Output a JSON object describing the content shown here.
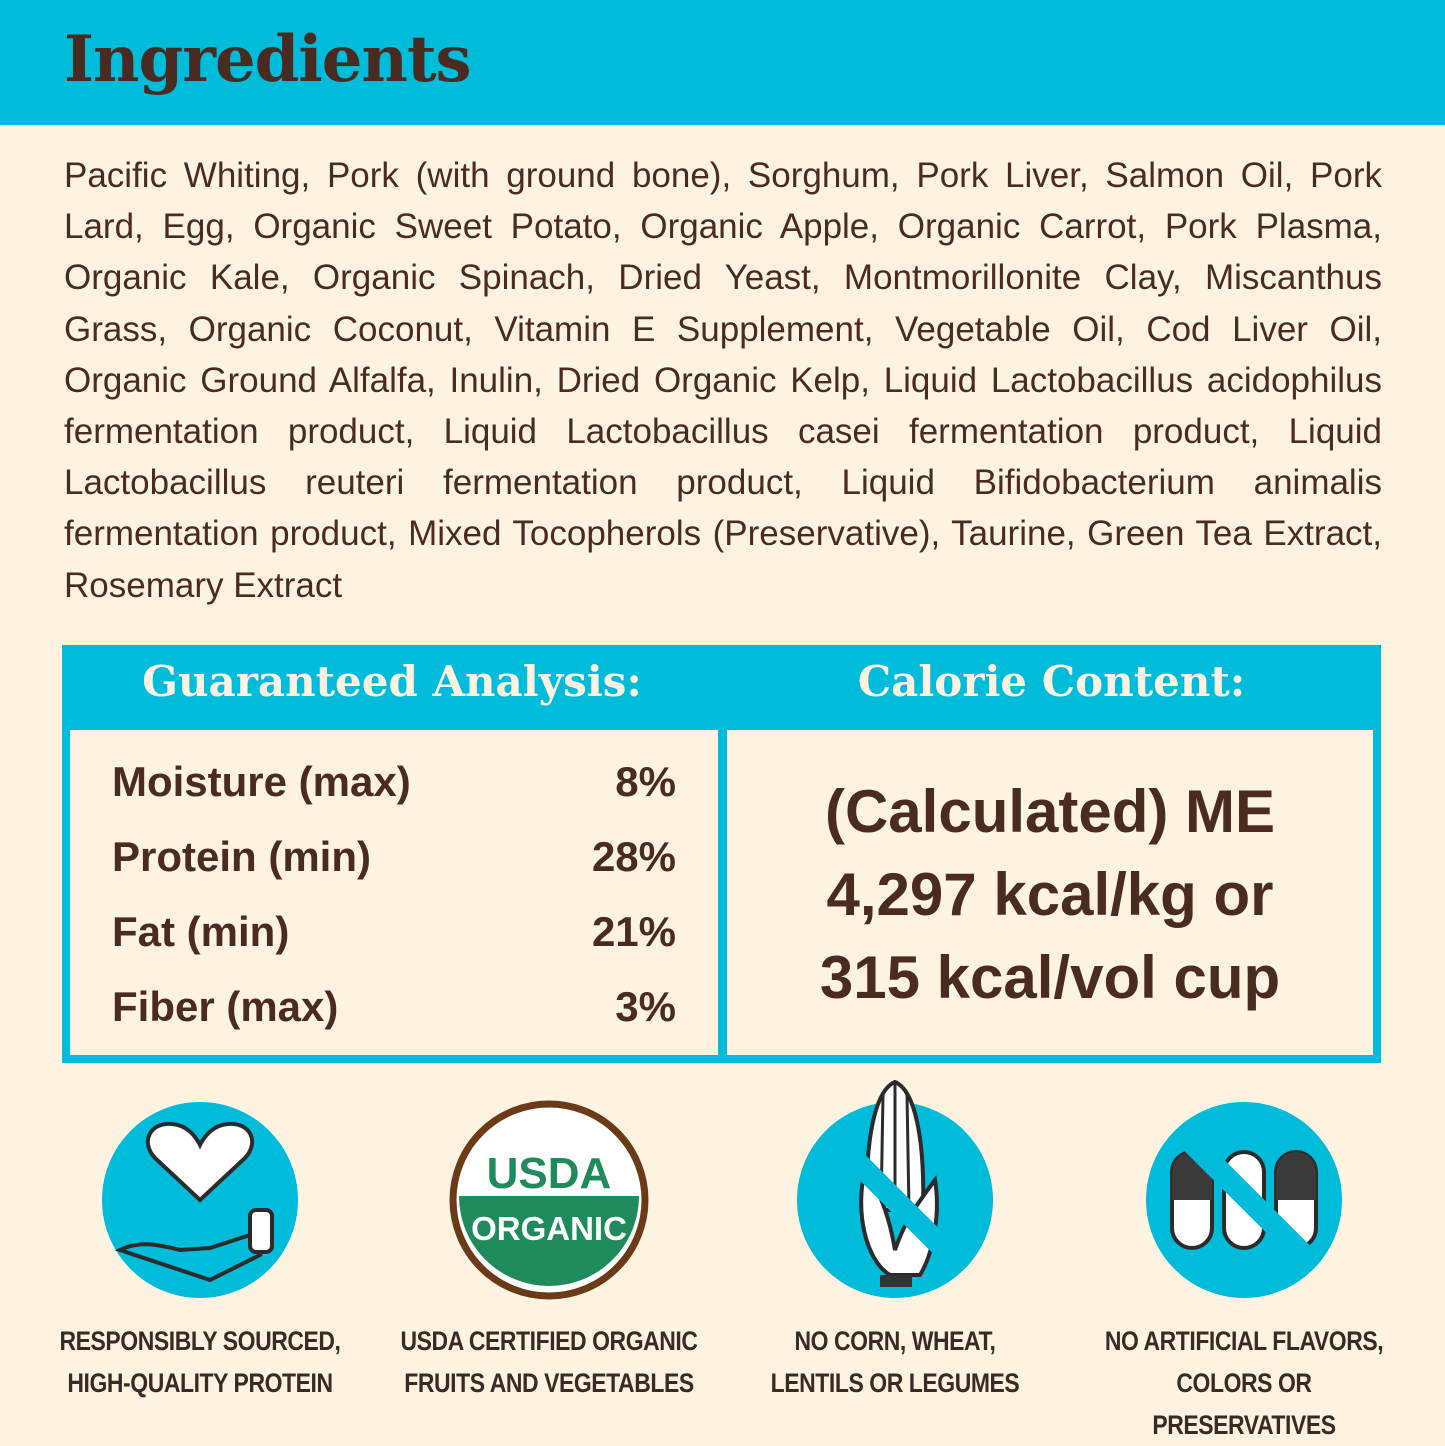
{
  "header": {
    "title": "Ingredients"
  },
  "ingredients": "Pacific Whiting, Pork (with ground bone), Sorghum, Pork Liver, Salmon Oil, Pork Lard, Egg, Organic Sweet Potato, Organic Apple, Organic Carrot, Pork Plasma, Organic Kale, Organic Spinach, Dried Yeast, Montmorillonite Clay, Miscanthus Grass, Organic Coconut, Vitamin E Supplement, Vegetable Oil, Cod Liver Oil, Organic Ground Alfalfa, Inulin, Dried Organic Kelp, Liquid Lactobacillus acidophilus fermentation product, Liquid Lactobacillus casei fermentation product, Liquid Lactobacillus reuteri fermentation product, Liquid Bifidobacterium animalis fermentation product, Mixed Tocopherols (Preservative), Taurine, Green Tea Extract, Rosemary Extract",
  "analysis": {
    "title": "Guaranteed Analysis:",
    "rows": [
      {
        "label": "Moisture (max)",
        "value": "8%"
      },
      {
        "label": "Protein (min)",
        "value": "28%"
      },
      {
        "label": "Fat (min)",
        "value": "21%"
      },
      {
        "label": "Fiber (max)",
        "value": "3%"
      }
    ]
  },
  "calorie": {
    "title": "Calorie Content:",
    "lines": [
      "(Calculated) ME",
      "4,297 kcal/kg or",
      "315 kcal/vol cup"
    ]
  },
  "badges": [
    {
      "icon": "heart-hand-icon",
      "line1": "RESPONSIBLY SOURCED,",
      "line2": "HIGH-QUALITY PROTEIN"
    },
    {
      "icon": "usda-organic-seal",
      "logo_text": [
        "USDA",
        "ORGANIC"
      ],
      "line1": "USDA CERTIFIED ORGANIC",
      "line2": "FRUITS AND VEGETABLES"
    },
    {
      "icon": "no-corn-icon",
      "line1": "NO CORN, WHEAT,",
      "line2": "LENTILS OR LEGUMES"
    },
    {
      "icon": "no-capsules-icon",
      "line1": "NO ARTIFICIAL FLAVORS,",
      "line2": "COLORS OR PRESERVATIVES"
    }
  ],
  "colors": {
    "accent": "#00bcdb",
    "background": "#fdf3e0",
    "text": "#4a2b22",
    "usda_green": "#1f8a5b"
  }
}
